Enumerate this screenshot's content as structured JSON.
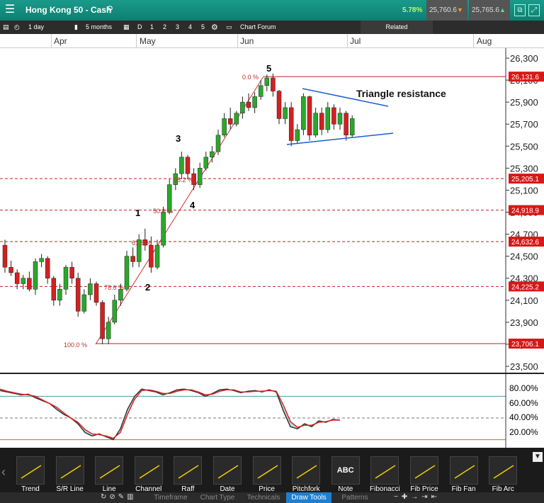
{
  "header": {
    "title": "Hong Kong 50 - Cash",
    "change_pct": "5.78%",
    "sell_price": "25,760.6",
    "buy_price": "25,765.6"
  },
  "toolbar": {
    "interval": "1 day",
    "range": "5 months",
    "d_label": "D",
    "chart_counts": [
      "1",
      "2",
      "3",
      "4",
      "5"
    ],
    "chart_forum": "Chart Forum",
    "related": "Related"
  },
  "months": [
    "Apr",
    "May",
    "Jun",
    "Jul",
    "Aug"
  ],
  "price_axis": [
    "26,300",
    "26,100",
    "25,900",
    "25,700",
    "25,500",
    "25,300",
    "25,100",
    "24,900",
    "24,700",
    "24,500",
    "24,300",
    "24,100",
    "23,900",
    "23,700",
    "23,500"
  ],
  "level_labels": [
    "26,131.6",
    "25,205.1",
    "24,918.9",
    "24,632.6",
    "24,225.2",
    "23,706.1"
  ],
  "fib_labels": [
    "0.0 %",
    "38.2 %",
    "50.0 %",
    "61.8 %",
    "78.6 %",
    "100.0 %"
  ],
  "wave_labels": [
    "1",
    "2",
    "3",
    "4",
    "5"
  ],
  "annotation": "Triangle resistance",
  "osc_axis": [
    "80.00%",
    "60.00%",
    "40.00%",
    "20.00%"
  ],
  "draw_tools": [
    "Trend",
    "S/R Line",
    "Line",
    "Channel",
    "Raff",
    "Date",
    "Price",
    "Pitchfork",
    "Note",
    "Fibonacci",
    "Fib Price",
    "Fib Fan",
    "Fib Arc"
  ],
  "note_icon_text": "ABC",
  "tabs": [
    "Timeframe",
    "Chart Type",
    "Technicals",
    "Draw Tools",
    "Patterns"
  ],
  "active_tab": "Draw Tools",
  "colors": {
    "up": "#2aa82a",
    "down": "#d42020",
    "accent": "#1e7fd0",
    "topbar": "#129080"
  },
  "chart_data": {
    "type": "candlestick",
    "ylim": [
      23400,
      26350
    ],
    "levels": [
      26131.6,
      25205.1,
      24918.9,
      24632.6,
      24225.2,
      23706.1
    ],
    "candles": [
      [
        24600,
        24650,
        24350,
        24400
      ],
      [
        24400,
        24460,
        24320,
        24350
      ],
      [
        24350,
        24380,
        24200,
        24250
      ],
      [
        24250,
        24330,
        24200,
        24300
      ],
      [
        24300,
        24360,
        24180,
        24200
      ],
      [
        24200,
        24480,
        24150,
        24450
      ],
      [
        24450,
        24520,
        24400,
        24480
      ],
      [
        24480,
        24500,
        24250,
        24300
      ],
      [
        24300,
        24320,
        24050,
        24100
      ],
      [
        24100,
        24250,
        24050,
        24200
      ],
      [
        24200,
        24420,
        24150,
        24400
      ],
      [
        24400,
        24450,
        24250,
        24300
      ],
      [
        24300,
        24350,
        23950,
        24000
      ],
      [
        24000,
        24200,
        23980,
        24150
      ],
      [
        24150,
        24300,
        24100,
        24250
      ],
      [
        24250,
        24270,
        24050,
        24080
      ],
      [
        24080,
        24100,
        23700,
        23750
      ],
      [
        23750,
        23950,
        23700,
        23900
      ],
      [
        23900,
        24150,
        23880,
        24100
      ],
      [
        24100,
        24250,
        24050,
        24200
      ],
      [
        24200,
        24550,
        24180,
        24500
      ],
      [
        24500,
        24580,
        24400,
        24450
      ],
      [
        24450,
        24700,
        24400,
        24650
      ],
      [
        24650,
        24750,
        24550,
        24600
      ],
      [
        24600,
        24680,
        24350,
        24400
      ],
      [
        24400,
        24650,
        24380,
        24600
      ],
      [
        24600,
        24950,
        24580,
        24900
      ],
      [
        24900,
        25200,
        24880,
        25150
      ],
      [
        25150,
        25300,
        25100,
        25250
      ],
      [
        25250,
        25450,
        25200,
        25400
      ],
      [
        25400,
        25420,
        25200,
        25250
      ],
      [
        25250,
        25300,
        25100,
        25150
      ],
      [
        25150,
        25350,
        25120,
        25300
      ],
      [
        25300,
        25450,
        25280,
        25400
      ],
      [
        25400,
        25500,
        25350,
        25450
      ],
      [
        25450,
        25650,
        25420,
        25600
      ],
      [
        25600,
        25800,
        25580,
        25750
      ],
      [
        25750,
        25850,
        25650,
        25700
      ],
      [
        25700,
        25820,
        25680,
        25800
      ],
      [
        25800,
        25950,
        25750,
        25900
      ],
      [
        25900,
        25980,
        25820,
        25850
      ],
      [
        25850,
        25990,
        25800,
        25950
      ],
      [
        25950,
        26100,
        25920,
        26050
      ],
      [
        26050,
        26150,
        26000,
        26120
      ],
      [
        26120,
        26160,
        25950,
        26000
      ],
      [
        26000,
        26010,
        25700,
        25750
      ],
      [
        25750,
        25900,
        25700,
        25850
      ],
      [
        25850,
        25900,
        25500,
        25550
      ],
      [
        25550,
        25700,
        25520,
        25650
      ],
      [
        25650,
        25980,
        25600,
        25950
      ],
      [
        25950,
        25960,
        25550,
        25600
      ],
      [
        25600,
        25850,
        25580,
        25800
      ],
      [
        25800,
        25850,
        25600,
        25650
      ],
      [
        25650,
        25900,
        25620,
        25850
      ],
      [
        25850,
        25880,
        25650,
        25700
      ],
      [
        25700,
        25850,
        25650,
        25800
      ],
      [
        25800,
        25820,
        25550,
        25600
      ],
      [
        25600,
        25780,
        25580,
        25750
      ]
    ],
    "oscillator_k": [
      88,
      86,
      84,
      82,
      83,
      78,
      74,
      70,
      62,
      55,
      50,
      42,
      30,
      25,
      28,
      24,
      20,
      35,
      62,
      80,
      90,
      88,
      86,
      82,
      85,
      89,
      90,
      88,
      85,
      80,
      84,
      89,
      90,
      88,
      85,
      87,
      88,
      86,
      89,
      86,
      60,
      38,
      35,
      42,
      38,
      46,
      44,
      48,
      47
    ],
    "oscillator_d": [
      90,
      87,
      85,
      83,
      82,
      80,
      75,
      70,
      65,
      57,
      50,
      44,
      34,
      28,
      27,
      25,
      22,
      30,
      55,
      76,
      88,
      89,
      87,
      84,
      84,
      87,
      89,
      89,
      86,
      82,
      83,
      87,
      89,
      89,
      86,
      86,
      87,
      87,
      88,
      87,
      68,
      45,
      37,
      40,
      40,
      44,
      45,
      47,
      47
    ]
  }
}
